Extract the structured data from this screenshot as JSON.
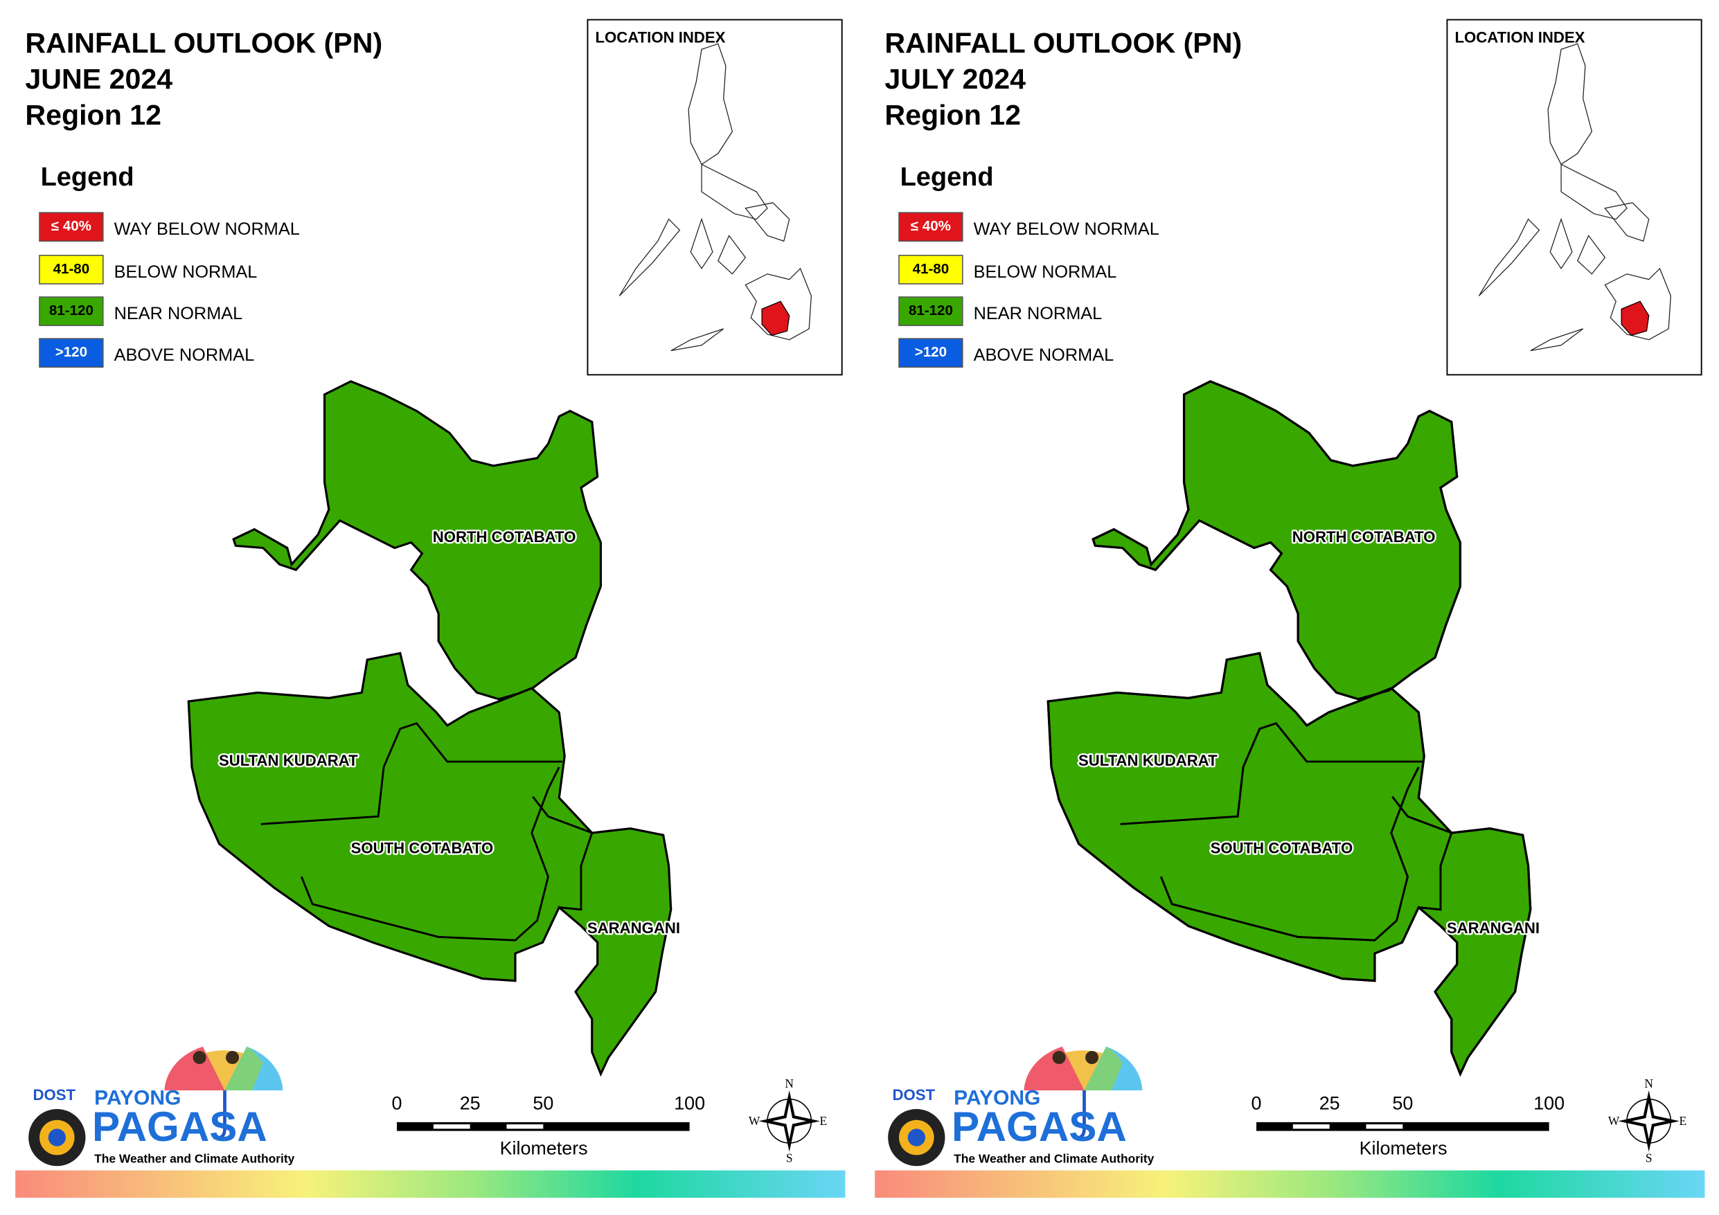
{
  "panels": [
    {
      "title": [
        "RAINFALL OUTLOOK (PN)",
        "JUNE 2024",
        "Region 12"
      ],
      "legend_title": "Legend",
      "legend": [
        {
          "range": "≤ 40%",
          "label": "WAY BELOW NORMAL",
          "color": "#e0141b"
        },
        {
          "range": "41-80",
          "label": "BELOW NORMAL",
          "color": "#ffff00"
        },
        {
          "range": "81-120",
          "label": "NEAR NORMAL",
          "color": "#38a800"
        },
        {
          "range": ">120",
          "label": "ABOVE NORMAL",
          "color": "#0a5de0"
        }
      ],
      "location_index": "LOCATION INDEX",
      "provinces": [
        "NORTH COTABATO",
        "SULTAN KUDARAT",
        "SOUTH COTABATO",
        "SARANGANI"
      ],
      "scale": {
        "ticks": [
          0,
          25,
          50,
          100
        ],
        "unit": "Kilometers"
      },
      "compass": [
        "N",
        "E",
        "S",
        "W"
      ]
    },
    {
      "title": [
        "RAINFALL OUTLOOK (PN)",
        "JULY 2024",
        "Region 12"
      ],
      "legend_title": "Legend",
      "legend": [
        {
          "range": "≤ 40%",
          "label": "WAY BELOW NORMAL",
          "color": "#e0141b"
        },
        {
          "range": "41-80",
          "label": "BELOW NORMAL",
          "color": "#ffff00"
        },
        {
          "range": "81-120",
          "label": "NEAR NORMAL",
          "color": "#38a800"
        },
        {
          "range": ">120",
          "label": "ABOVE NORMAL",
          "color": "#0a5de0"
        }
      ],
      "location_index": "LOCATION INDEX",
      "provinces": [
        "NORTH COTABATO",
        "SULTAN KUDARAT",
        "SOUTH COTABATO",
        "SARANGANI"
      ],
      "scale": {
        "ticks": [
          0,
          25,
          50,
          100
        ],
        "unit": "Kilometers"
      },
      "compass": [
        "N",
        "E",
        "S",
        "W"
      ]
    }
  ],
  "logo": {
    "agency": "DOST",
    "brand_top": "PAYONG",
    "brand": "PAGASA",
    "tagline": "The Weather and Climate Authority"
  }
}
